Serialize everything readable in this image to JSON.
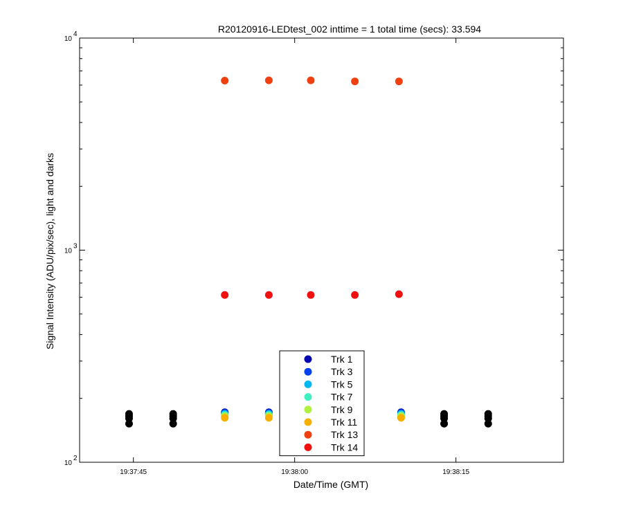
{
  "chart_data": {
    "type": "scatter",
    "title": "R20120916-LEDtest_002 inttime = 1 total time (secs): 33.594",
    "xlabel": "Date/Time (GMT)",
    "ylabel": "Signal Intensity (ADU/pix/sec), light and darks",
    "y_scale": "log",
    "xlim": [
      "19:37:40",
      "19:38:25"
    ],
    "ylim": [
      100,
      10000
    ],
    "x_ticks": [
      "19:37:45",
      "19:38:00",
      "19:38:15"
    ],
    "y_ticks": [
      {
        "base": "10",
        "exp": "2"
      },
      {
        "base": "10",
        "exp": "3"
      },
      {
        "base": "10",
        "exp": "4"
      }
    ],
    "grid": false,
    "legend_position": "bottom-center",
    "series": [
      {
        "name": "Trk 1",
        "color": "#0000b0",
        "x": [
          "19:37:53.5",
          "19:37:57.6",
          "19:38:09.9"
        ],
        "y": [
          172,
          172,
          172
        ]
      },
      {
        "name": "Trk 3",
        "color": "#0040f0",
        "x": [
          "19:37:53.5",
          "19:37:57.6",
          "19:38:09.9"
        ],
        "y": [
          171,
          171,
          171
        ]
      },
      {
        "name": "Trk 5",
        "color": "#00b8f0",
        "x": [
          "19:37:53.5",
          "19:37:57.6",
          "19:38:09.9"
        ],
        "y": [
          169,
          169,
          169
        ]
      },
      {
        "name": "Trk 7",
        "color": "#40f0c0",
        "x": [
          "19:37:53.5",
          "19:37:57.6",
          "19:38:09.9"
        ],
        "y": [
          167,
          167,
          167
        ]
      },
      {
        "name": "Trk 9",
        "color": "#b0f040",
        "x": [
          "19:37:53.5",
          "19:37:57.6",
          "19:38:09.9"
        ],
        "y": [
          165,
          165,
          165
        ]
      },
      {
        "name": "Trk 11",
        "color": "#f8b000",
        "x": [
          "19:37:53.5",
          "19:37:57.6",
          "19:38:09.9"
        ],
        "y": [
          162,
          162,
          162
        ]
      },
      {
        "name": "Trk 13",
        "color": "#f04010",
        "x": [
          "19:37:53.5",
          "19:37:57.6",
          "19:38:01.5",
          "19:38:05.6",
          "19:38:09.7"
        ],
        "y": [
          6300,
          6320,
          6320,
          6250,
          6250
        ]
      },
      {
        "name": "Trk 14",
        "color": "#f01010",
        "x": [
          "19:37:53.5",
          "19:37:57.6",
          "19:38:01.5",
          "19:38:05.6",
          "19:38:09.7"
        ],
        "y": [
          615,
          615,
          615,
          615,
          620
        ]
      },
      {
        "color": "#000000",
        "x": [
          "19:37:44.6",
          "19:37:44.6",
          "19:37:44.6",
          "19:37:44.6",
          "19:37:48.7",
          "19:37:48.7",
          "19:37:48.7",
          "19:37:48.7",
          "19:38:13.9",
          "19:38:13.9",
          "19:38:13.9",
          "19:38:13.9",
          "19:38:18.0",
          "19:38:18.0",
          "19:38:18.0",
          "19:38:18.0"
        ],
        "y": [
          169,
          165,
          161,
          152,
          169,
          165,
          161,
          152,
          169,
          165,
          161,
          152,
          169,
          165,
          161,
          152
        ]
      }
    ]
  }
}
